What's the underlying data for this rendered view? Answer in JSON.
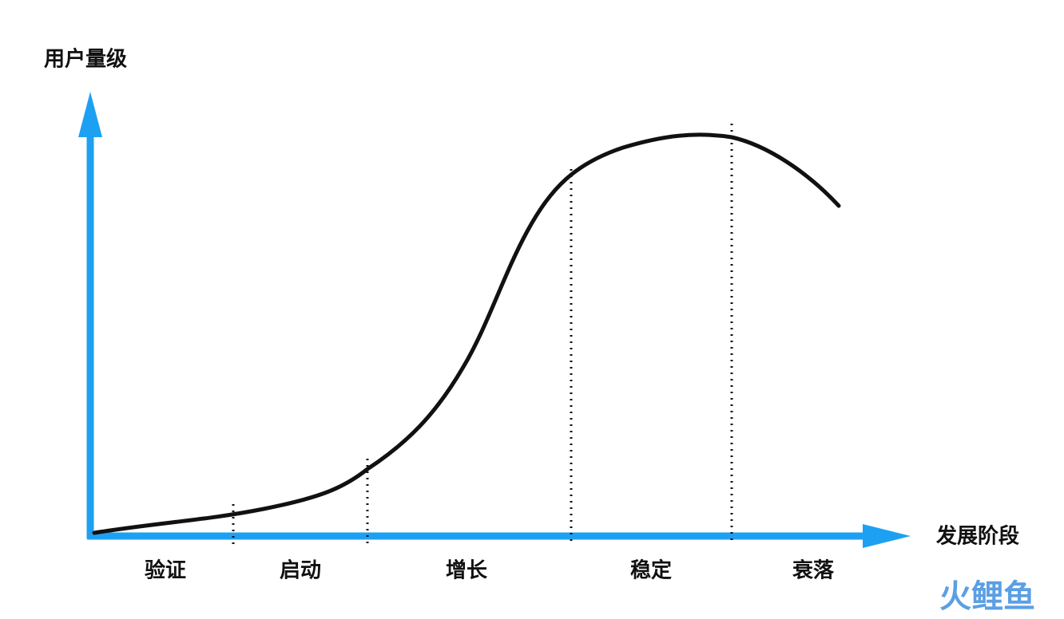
{
  "y_axis_label": "用户量级",
  "x_axis_label": "发展阶段",
  "stages": [
    "验证",
    "启动",
    "增长",
    "稳定",
    "衰落"
  ],
  "watermark": "火鲤鱼"
}
